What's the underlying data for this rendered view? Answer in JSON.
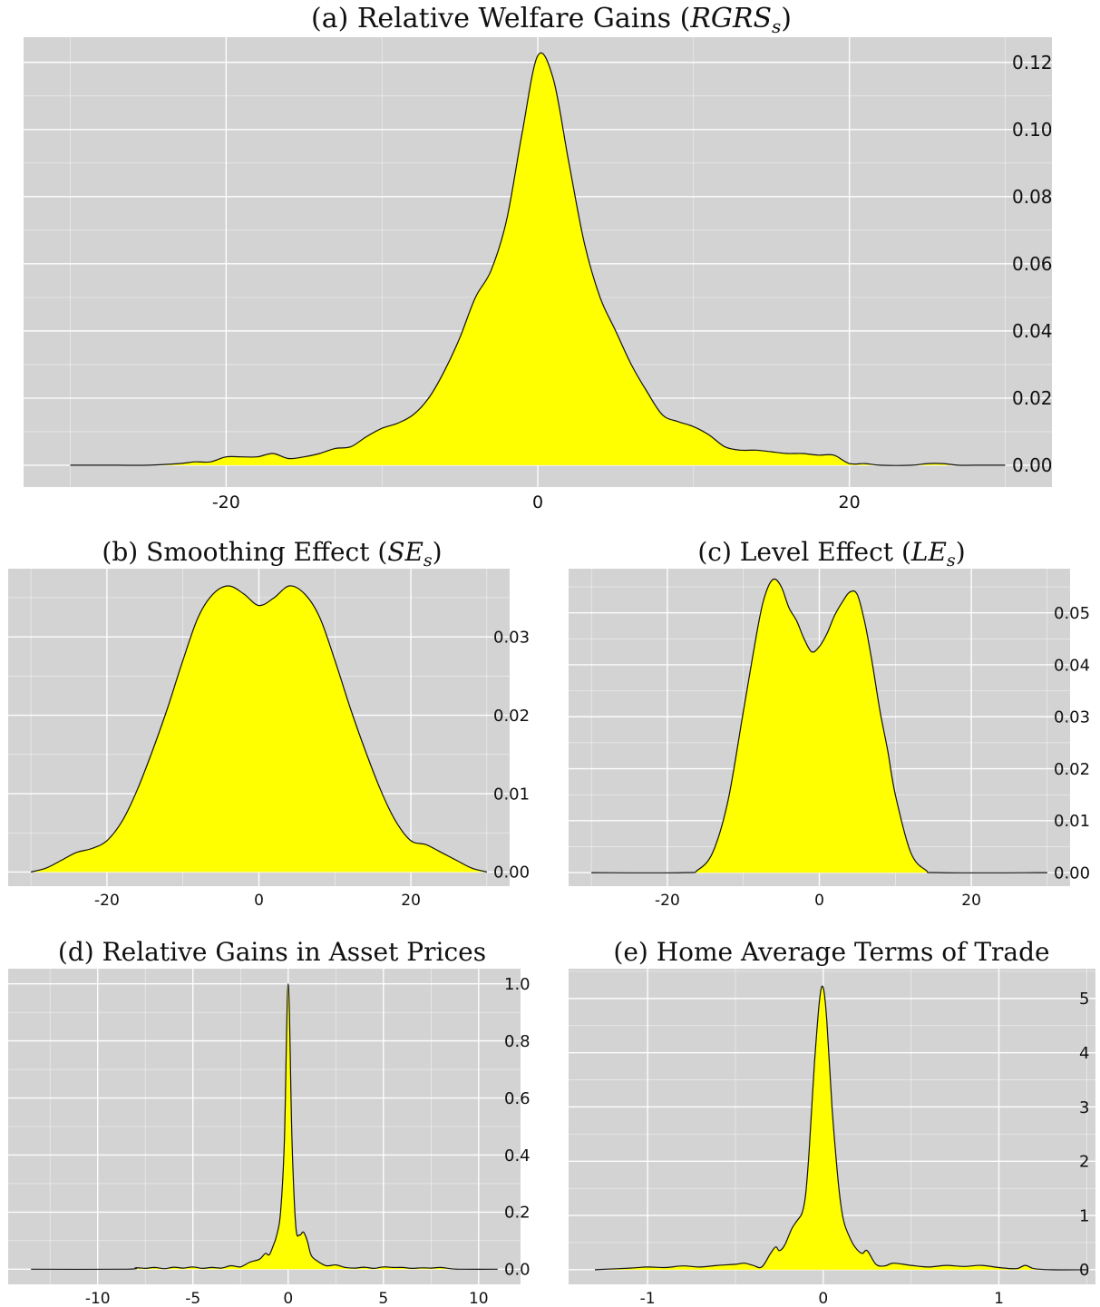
{
  "chart_data": [
    {
      "id": "a",
      "type": "area",
      "title": "(a) Relative Welfare Gains (",
      "title_math": "RGRS",
      "title_sub": "s",
      "title_close": ")",
      "xlim": [
        -33,
        33
      ],
      "ylim": [
        -0.0065,
        0.1275
      ],
      "x_ticks": [
        -20,
        0,
        20
      ],
      "x_tick_labels": [
        "-20",
        "0",
        "20"
      ],
      "y_ticks": [
        0,
        0.02,
        0.04,
        0.06,
        0.08,
        0.1,
        0.12
      ],
      "y_tick_labels": [
        "0.00",
        "0.02",
        "0.04",
        "0.06",
        "0.08",
        "0.10",
        "0.12"
      ],
      "fill": "#ffff00",
      "panel_bg": "#d3d3d3",
      "grid": true,
      "x": [
        -30,
        -27,
        -25,
        -23,
        -22,
        -21,
        -20,
        -19,
        -18,
        -17,
        -16,
        -15,
        -14,
        -13,
        -12,
        -11,
        -10,
        -9,
        -8,
        -7,
        -6,
        -5,
        -4,
        -3,
        -2,
        -1,
        0,
        1,
        2,
        3,
        4,
        5,
        6,
        7,
        8,
        9,
        10,
        11,
        12,
        13,
        14,
        15,
        16,
        17,
        18,
        19,
        20,
        21,
        22,
        24,
        25,
        26,
        27,
        28,
        30
      ],
      "y": [
        0,
        0,
        0,
        0.0005,
        0.001,
        0.001,
        0.0025,
        0.0025,
        0.0025,
        0.0035,
        0.002,
        0.0025,
        0.0035,
        0.005,
        0.0055,
        0.0085,
        0.011,
        0.0125,
        0.015,
        0.02,
        0.028,
        0.038,
        0.05,
        0.058,
        0.073,
        0.099,
        0.122,
        0.115,
        0.09,
        0.066,
        0.05,
        0.04,
        0.03,
        0.022,
        0.015,
        0.013,
        0.0115,
        0.009,
        0.0055,
        0.0045,
        0.0045,
        0.004,
        0.0035,
        0.0035,
        0.003,
        0.003,
        0.0005,
        0.0005,
        0,
        0,
        0.0005,
        0.0005,
        0,
        0,
        0
      ]
    },
    {
      "id": "b",
      "type": "area",
      "title": "(b) Smoothing Effect (",
      "title_math": "SE",
      "title_sub": "s",
      "title_close": ")",
      "xlim": [
        -33,
        33
      ],
      "ylim": [
        -0.0018,
        0.0387
      ],
      "x_ticks": [
        -20,
        0,
        20
      ],
      "x_tick_labels": [
        "-20",
        "0",
        "20"
      ],
      "y_ticks": [
        0,
        0.01,
        0.02,
        0.03
      ],
      "y_tick_labels": [
        "0.00",
        "0.01",
        "0.02",
        "0.03"
      ],
      "fill": "#ffff00",
      "panel_bg": "#d3d3d3",
      "grid": true,
      "x": [
        -30,
        -28,
        -26,
        -24,
        -22,
        -20,
        -18,
        -16,
        -14,
        -12,
        -10,
        -8,
        -6,
        -4,
        -2,
        0,
        2,
        4,
        6,
        8,
        10,
        12,
        14,
        16,
        18,
        20,
        22,
        24,
        26,
        28,
        30
      ],
      "y": [
        0,
        0.0005,
        0.0015,
        0.0025,
        0.003,
        0.004,
        0.0065,
        0.0105,
        0.0155,
        0.021,
        0.027,
        0.0325,
        0.0355,
        0.0365,
        0.0355,
        0.034,
        0.035,
        0.0365,
        0.0355,
        0.0325,
        0.027,
        0.021,
        0.0155,
        0.0105,
        0.0065,
        0.004,
        0.0035,
        0.0025,
        0.0015,
        0.0005,
        0
      ]
    },
    {
      "id": "c",
      "type": "area",
      "title": "(c) Level Effect (",
      "title_math": "LE",
      "title_sub": "s",
      "title_close": ")",
      "xlim": [
        -33,
        33
      ],
      "ylim": [
        -0.0026,
        0.0585
      ],
      "x_ticks": [
        -20,
        0,
        20
      ],
      "x_tick_labels": [
        "-20",
        "0",
        "20"
      ],
      "y_ticks": [
        0,
        0.01,
        0.02,
        0.03,
        0.04,
        0.05
      ],
      "y_tick_labels": [
        "0.00",
        "0.01",
        "0.02",
        "0.03",
        "0.04",
        "0.05"
      ],
      "fill": "#ffff00",
      "panel_bg": "#d3d3d3",
      "grid": true,
      "x": [
        -30,
        -18,
        -16,
        -14,
        -12,
        -10,
        -8,
        -7,
        -6,
        -5,
        -4,
        -3,
        -2,
        -1,
        0,
        1,
        2,
        3,
        4,
        5,
        6,
        7,
        8,
        9,
        10,
        12,
        14,
        16,
        30
      ],
      "y": [
        0,
        0,
        0.0005,
        0.004,
        0.014,
        0.031,
        0.048,
        0.054,
        0.0565,
        0.055,
        0.051,
        0.0485,
        0.045,
        0.0425,
        0.0435,
        0.046,
        0.0495,
        0.052,
        0.054,
        0.0535,
        0.048,
        0.04,
        0.031,
        0.0235,
        0.015,
        0.004,
        0.0005,
        0,
        0
      ]
    },
    {
      "id": "d",
      "type": "area",
      "title": "(d) Relative Gains in Asset Prices",
      "title_math": "",
      "title_sub": "",
      "title_close": "",
      "xlim": [
        -14.7,
        12.2
      ],
      "ylim": [
        -0.053,
        1.053
      ],
      "x_ticks": [
        -10,
        -5,
        0,
        5,
        10
      ],
      "x_tick_labels": [
        "-10",
        "-5",
        "0",
        "5",
        "10"
      ],
      "y_ticks": [
        0,
        0.2,
        0.4,
        0.6,
        0.8,
        1.0
      ],
      "y_tick_labels": [
        "0.0",
        "0.2",
        "0.4",
        "0.6",
        "0.8",
        "1.0"
      ],
      "fill": "#ffff00",
      "panel_bg": "#d3d3d3",
      "grid": true,
      "x": [
        -13.5,
        -8.5,
        -8,
        -7.5,
        -7,
        -6.5,
        -6,
        -5.5,
        -5,
        -4.5,
        -4,
        -3.5,
        -3,
        -2.5,
        -2,
        -1.5,
        -1.2,
        -1,
        -0.8,
        -0.6,
        -0.4,
        -0.2,
        0,
        0.2,
        0.4,
        0.6,
        0.8,
        1,
        1.2,
        1.5,
        2,
        2.5,
        3,
        3.5,
        4,
        4.5,
        5,
        5.5,
        6,
        6.5,
        7,
        7.5,
        8,
        8.5,
        9,
        11
      ],
      "y": [
        0,
        0,
        0.005,
        0.003,
        0.006,
        0.002,
        0.007,
        0.004,
        0.008,
        0.003,
        0.006,
        0.004,
        0.012,
        0.008,
        0.025,
        0.035,
        0.055,
        0.05,
        0.08,
        0.12,
        0.2,
        0.45,
        1.0,
        0.45,
        0.15,
        0.12,
        0.13,
        0.1,
        0.05,
        0.03,
        0.012,
        0.015,
        0.006,
        0.004,
        0.007,
        0.003,
        0.008,
        0.006,
        0.006,
        0.003,
        0.005,
        0.004,
        0.006,
        0.002,
        0,
        0
      ]
    },
    {
      "id": "e",
      "type": "area",
      "title": "(e) Home Average Terms of Trade",
      "title_math": "",
      "title_sub": "",
      "title_close": "",
      "xlim": [
        -1.45,
        1.55
      ],
      "ylim": [
        -0.27,
        5.55
      ],
      "x_ticks": [
        -1,
        0,
        1
      ],
      "x_tick_labels": [
        "-1",
        "0",
        "1"
      ],
      "y_ticks": [
        0,
        1,
        2,
        3,
        4,
        5
      ],
      "y_tick_labels": [
        "0",
        "1",
        "2",
        "3",
        "4",
        "5"
      ],
      "fill": "#ffff00",
      "panel_bg": "#d3d3d3",
      "grid": true,
      "x": [
        -1.3,
        -1.1,
        -1.0,
        -0.9,
        -0.8,
        -0.7,
        -0.6,
        -0.5,
        -0.45,
        -0.4,
        -0.35,
        -0.3,
        -0.27,
        -0.25,
        -0.22,
        -0.18,
        -0.15,
        -0.12,
        -0.1,
        -0.08,
        -0.05,
        -0.02,
        0,
        0.02,
        0.05,
        0.08,
        0.1,
        0.12,
        0.15,
        0.18,
        0.22,
        0.25,
        0.3,
        0.35,
        0.4,
        0.5,
        0.6,
        0.7,
        0.8,
        0.9,
        1.0,
        1.1,
        1.15,
        1.2,
        1.3,
        1.5
      ],
      "y": [
        0,
        0.03,
        0.05,
        0.04,
        0.07,
        0.05,
        0.08,
        0.1,
        0.12,
        0.08,
        0.05,
        0.3,
        0.42,
        0.35,
        0.45,
        0.75,
        0.9,
        1.05,
        1.4,
        2.2,
        3.8,
        5.0,
        5.2,
        4.6,
        3.0,
        1.8,
        1.2,
        0.85,
        0.6,
        0.42,
        0.3,
        0.35,
        0.1,
        0.07,
        0.12,
        0.08,
        0.05,
        0.08,
        0.06,
        0.08,
        0.04,
        0.02,
        0.08,
        0.02,
        0,
        0
      ]
    }
  ]
}
